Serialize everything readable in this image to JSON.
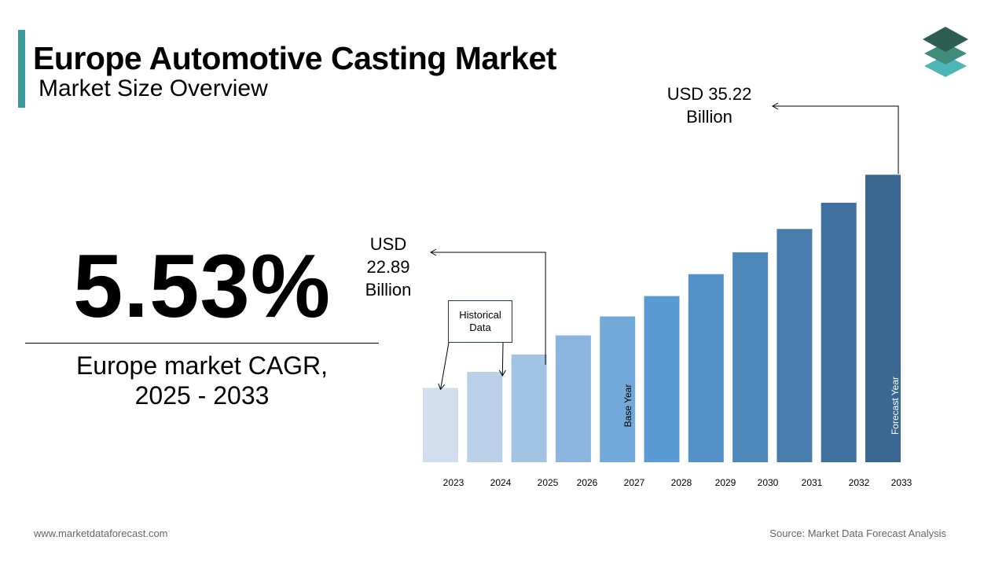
{
  "header": {
    "title": "Europe Automotive Casting Market",
    "subtitle": "Market Size Overview"
  },
  "highlight": {
    "cagr_value": "5.53%",
    "cagr_label": "Europe market CAGR,\n2025 - 2033"
  },
  "callouts": {
    "start_value": "USD\n22.89\nBillion",
    "end_value": "USD 35.22\nBillion",
    "historical": "Historical\nData",
    "base_year": "Base Year",
    "forecast_year": "Forecast Year"
  },
  "footer": {
    "website": "www.marketdataforecast.com",
    "source": "Source: Market Data Forecast Analysis"
  },
  "colors": {
    "accent": "#3d9a9b",
    "bar_start": "#d2ddee",
    "bar_mid": "#5b9bd5",
    "bar_end": "#3a6891",
    "logo_dark": "#2e5d52",
    "logo_mid": "#3f8b7c",
    "logo_light": "#4db5b5"
  },
  "chart_data": {
    "type": "bar",
    "categories": [
      "2023",
      "2024",
      "2025",
      "2026",
      "2027",
      "2028",
      "2029",
      "2030",
      "2031",
      "2032",
      "2033"
    ],
    "values": [
      20.6,
      21.7,
      22.89,
      24.2,
      25.5,
      26.9,
      28.4,
      29.9,
      31.5,
      33.3,
      35.22
    ],
    "ylim": [
      15.5,
      37.5
    ],
    "labeled_values": {
      "2025": 22.89,
      "2033": 35.22
    },
    "title": "",
    "xlabel": "",
    "ylabel": "",
    "grid": false,
    "legend": "none"
  }
}
